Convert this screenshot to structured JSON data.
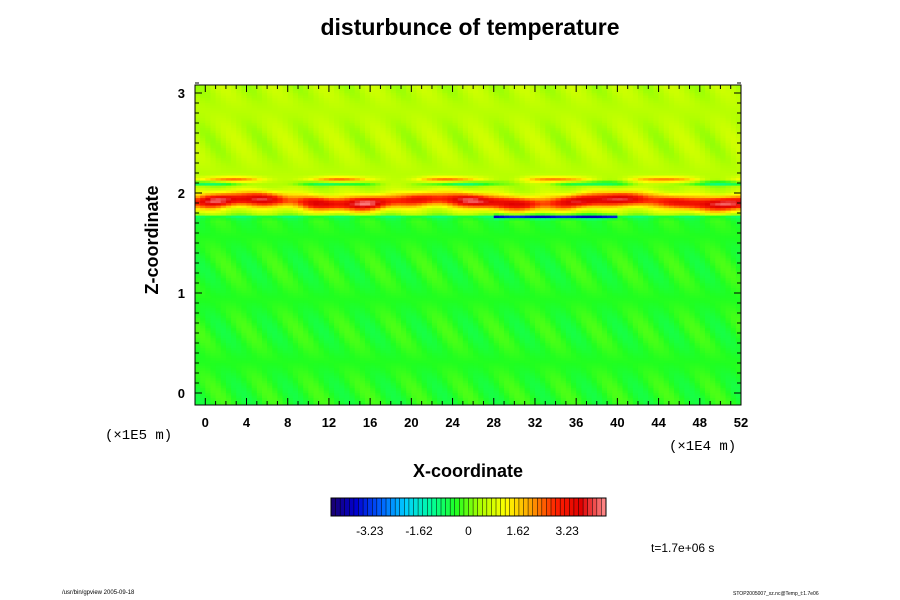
{
  "chart_data": {
    "type": "heatmap",
    "title": "disturbunce of temperature",
    "xlabel": "X-coordinate",
    "ylabel": "Z-coordinate",
    "x_unit": "(×1E4 m)",
    "y_unit": "(×1E5 m)",
    "xlim": [
      -1,
      52
    ],
    "ylim": [
      -0.12,
      3.08
    ],
    "x_ticks": [
      "0",
      "4",
      "8",
      "12",
      "16",
      "20",
      "24",
      "28",
      "32",
      "36",
      "40",
      "44",
      "48",
      "52"
    ],
    "y_ticks": [
      "0",
      "1",
      "2",
      "3"
    ],
    "colorbar": {
      "tick_values": [
        -3.23,
        -1.62,
        0,
        1.62,
        3.23
      ],
      "tick_labels": [
        "-3.23",
        "-1.62",
        "0",
        "1.62",
        "3.23"
      ],
      "range": [
        -4.5,
        4.5
      ],
      "colors": [
        "#1a006e",
        "#0000d0",
        "#0060ff",
        "#00d0ff",
        "#00ffa0",
        "#20ff20",
        "#b0ff00",
        "#ffff00",
        "#ffa000",
        "#ff2000",
        "#e00000",
        "#ff9090"
      ]
    },
    "field": {
      "background_upper": 0.5,
      "background_lower": -0.4,
      "band_center_z": 1.92,
      "band_peak": 4.0,
      "band_below_min": -4.2
    },
    "time_label": "t=1.7e+06 s"
  },
  "footer": {
    "left": "/usr/bin/gpview 2005-09-18",
    "right": "STOP2005007_xz.nc@Temp_t:1.7e06"
  }
}
